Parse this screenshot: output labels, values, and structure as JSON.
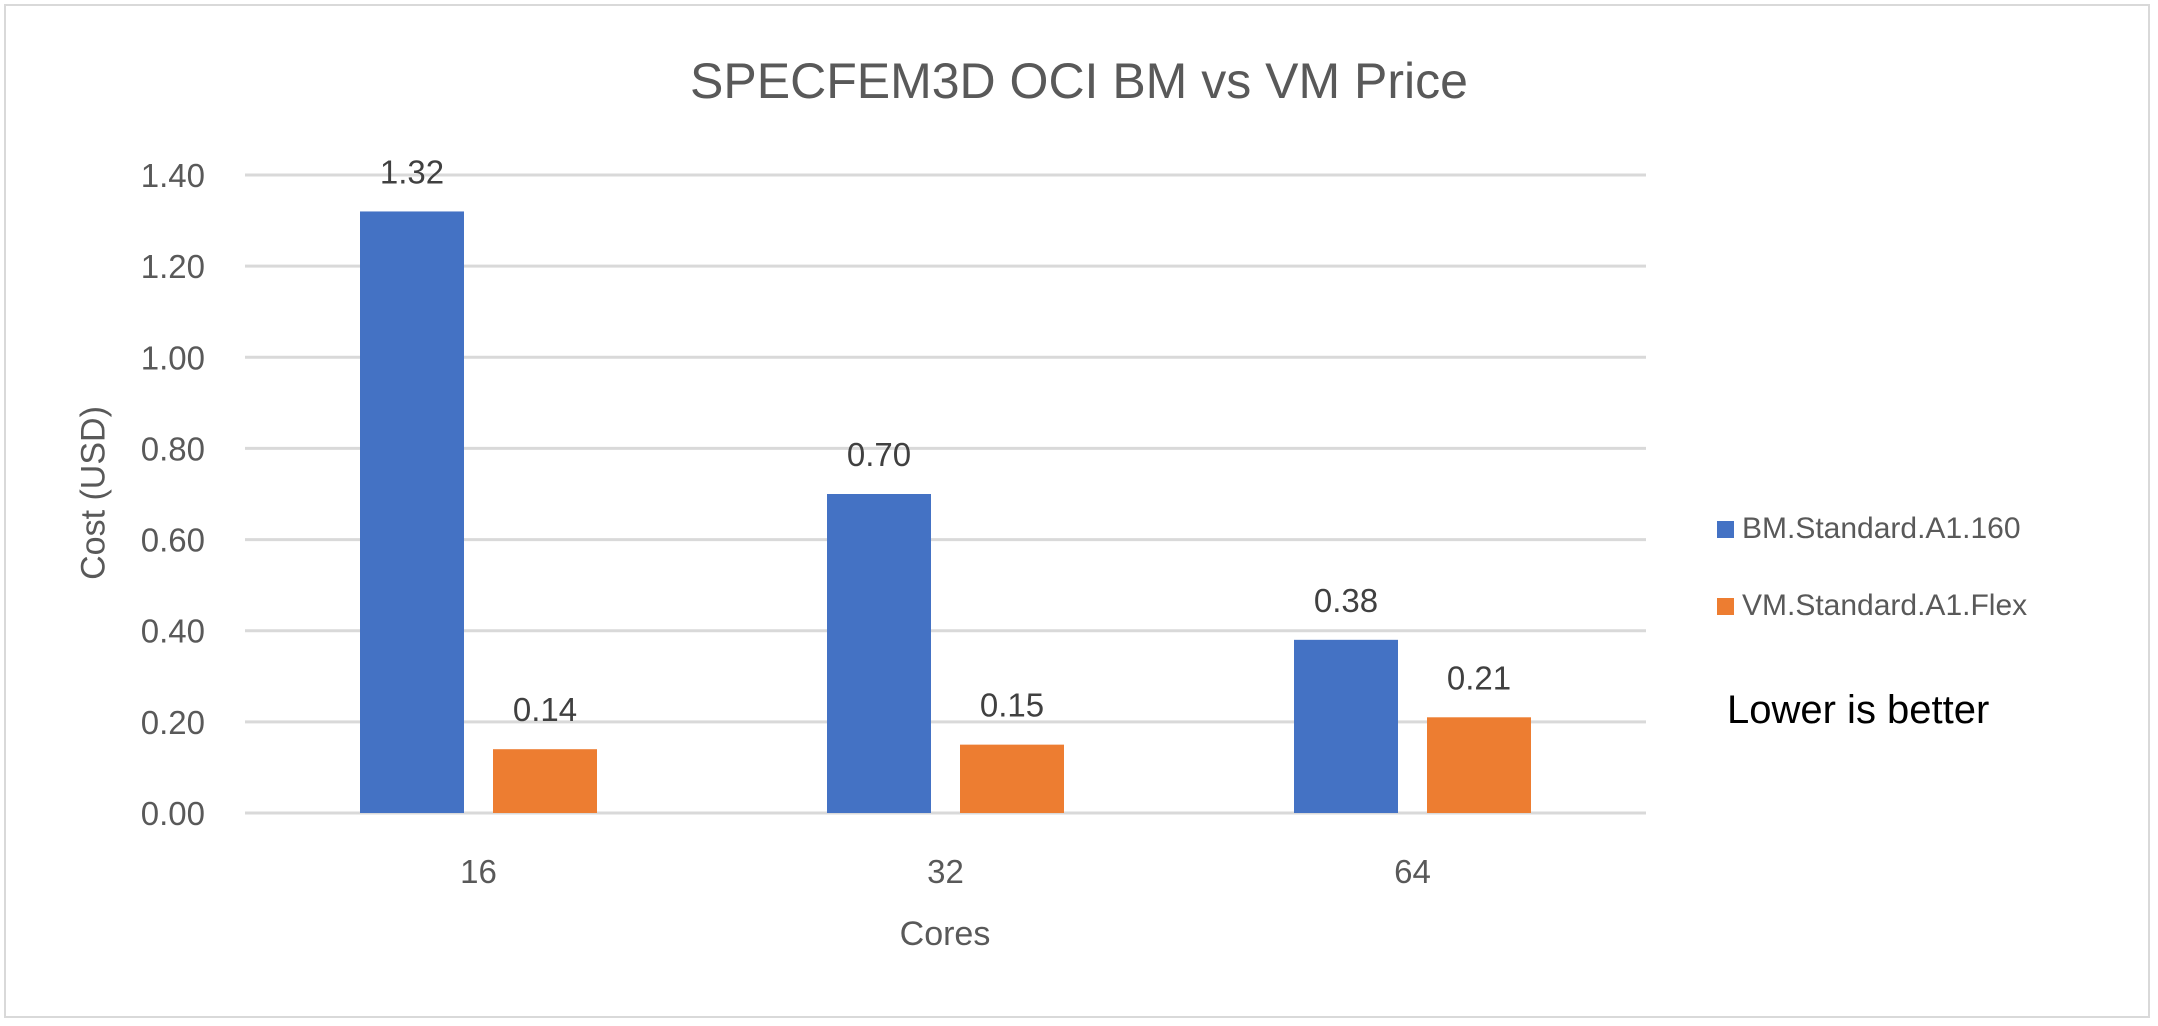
{
  "chart_data": {
    "type": "bar",
    "title": "SPECFEM3D OCI BM vs VM Price",
    "xlabel": "Cores",
    "ylabel": "Cost (USD)",
    "categories": [
      "16",
      "32",
      "64"
    ],
    "series": [
      {
        "name": "BM.Standard.A1.160",
        "color": "#4472C4",
        "values": [
          1.32,
          0.7,
          0.38
        ],
        "labels": [
          "1.32",
          "0.70",
          "0.38"
        ]
      },
      {
        "name": "VM.Standard.A1.Flex",
        "color": "#ED7D31",
        "values": [
          0.14,
          0.15,
          0.21
        ],
        "labels": [
          "0.14",
          "0.15",
          "0.21"
        ]
      }
    ],
    "ylim": [
      0,
      1.4
    ],
    "yticks": [
      "0.00",
      "0.20",
      "0.40",
      "0.60",
      "0.80",
      "1.00",
      "1.20",
      "1.40"
    ],
    "grid": true,
    "legend_position": "right",
    "annotation": "Lower is better"
  }
}
